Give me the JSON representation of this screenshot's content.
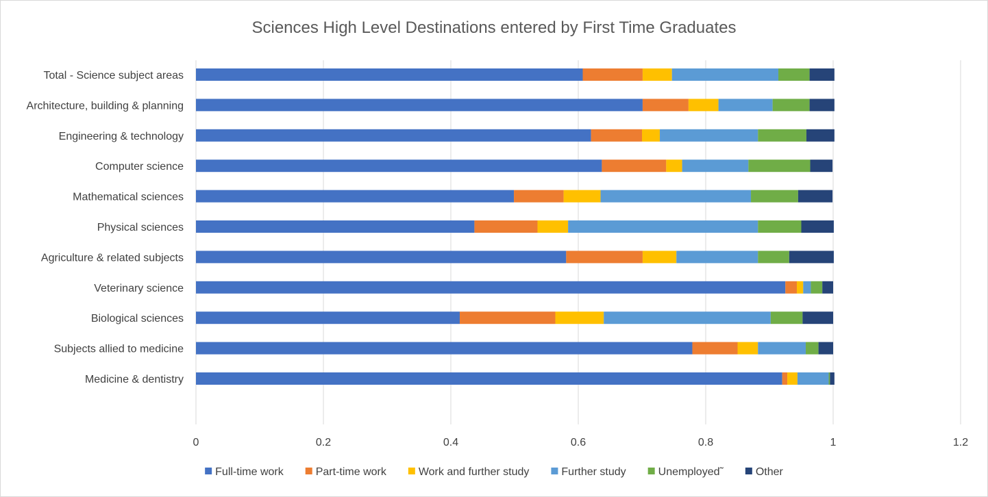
{
  "chart_data": {
    "type": "bar",
    "orientation": "horizontal",
    "stacked": true,
    "title": "Sciences High Level Destinations entered by First Time Graduates",
    "categories": [
      "Total - Science subject areas",
      "Architecture, building & planning",
      "Engineering & technology",
      "Computer science",
      "Mathematical sciences",
      "Physical sciences",
      "Agriculture & related subjects",
      "Veterinary science",
      "Biological sciences",
      "Subjects allied to medicine",
      "Medicine & dentistry"
    ],
    "series": [
      {
        "name": "Full-time work",
        "color": "#4472C4",
        "values": [
          0.607,
          0.701,
          0.62,
          0.637,
          0.499,
          0.437,
          0.581,
          0.925,
          0.414,
          0.779,
          0.92
        ]
      },
      {
        "name": "Part-time work",
        "color": "#ED7D31",
        "values": [
          0.094,
          0.072,
          0.08,
          0.101,
          0.078,
          0.099,
          0.12,
          0.018,
          0.15,
          0.071,
          0.008
        ]
      },
      {
        "name": "Work and further study",
        "color": "#FFC000",
        "values": [
          0.046,
          0.047,
          0.028,
          0.025,
          0.058,
          0.048,
          0.053,
          0.01,
          0.076,
          0.032,
          0.016
        ]
      },
      {
        "name": "Further study",
        "color": "#5B9BD5",
        "values": [
          0.167,
          0.085,
          0.154,
          0.104,
          0.236,
          0.298,
          0.128,
          0.012,
          0.262,
          0.075,
          0.049
        ]
      },
      {
        "name": "Unemployed˜",
        "color": "#70AD47",
        "values": [
          0.049,
          0.058,
          0.076,
          0.097,
          0.074,
          0.068,
          0.049,
          0.018,
          0.05,
          0.02,
          0.002
        ]
      },
      {
        "name": "Other",
        "color": "#264478",
        "values": [
          0.039,
          0.039,
          0.044,
          0.035,
          0.054,
          0.051,
          0.07,
          0.017,
          0.048,
          0.023,
          0.007
        ]
      }
    ],
    "xlim": [
      0,
      1.2
    ],
    "xticks": [
      "0",
      "0.2",
      "0.4",
      "0.6",
      "0.8",
      "1",
      "1.2"
    ],
    "grid": true,
    "legend": "bottom"
  }
}
